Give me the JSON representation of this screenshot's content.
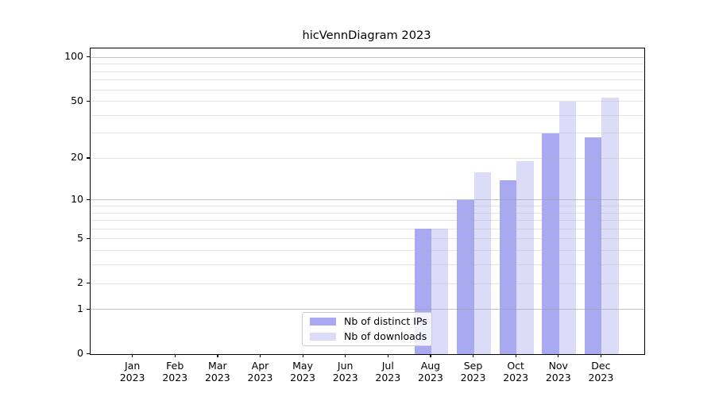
{
  "figure": {
    "title": "hicVennDiagram 2023"
  },
  "chart_data": {
    "type": "bar",
    "title": "hicVennDiagram 2023",
    "categories": [
      "Jan",
      "Feb",
      "Mar",
      "Apr",
      "May",
      "Jun",
      "Jul",
      "Aug",
      "Sep",
      "Oct",
      "Nov",
      "Dec"
    ],
    "x_year_suffix": "2023",
    "series": [
      {
        "name": "Nb of distinct IPs",
        "color": "#a9a9f1",
        "values": [
          0,
          0,
          0,
          0,
          0,
          0,
          0,
          6,
          10,
          14,
          30,
          28
        ]
      },
      {
        "name": "Nb of downloads",
        "color": "#dcdcf8",
        "values": [
          0,
          0,
          0,
          0,
          0,
          0,
          0,
          6,
          16,
          19,
          50,
          53
        ]
      }
    ],
    "xlabel": "",
    "ylabel": "",
    "y_scale": "log1p",
    "y_ticks": [
      0,
      1,
      2,
      5,
      10,
      20,
      50,
      100
    ],
    "y_gridlines": [
      1,
      2,
      3,
      4,
      5,
      6,
      7,
      8,
      9,
      10,
      20,
      30,
      40,
      50,
      60,
      70,
      80,
      90,
      100
    ],
    "y_major_gridlines": [
      1,
      10,
      100
    ],
    "ylim": [
      0,
      115
    ],
    "grid": true,
    "legend": {
      "position": "lower-center",
      "entries": [
        "Nb of distinct IPs",
        "Nb of downloads"
      ]
    },
    "colors": {
      "background": "#ffffff",
      "spine": "#000000",
      "grid_minor": "#efefef",
      "grid_major": "#c9c9c9",
      "bar_ips": "#a9a9f1",
      "bar_downloads": "#dcdcf8"
    }
  }
}
